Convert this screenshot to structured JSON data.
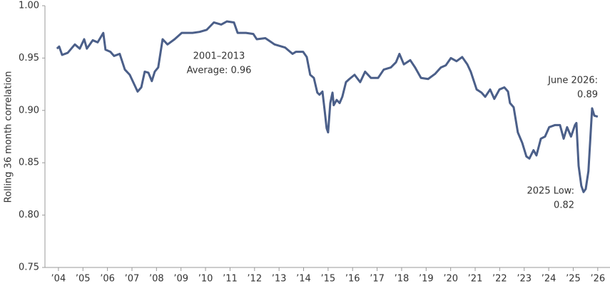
{
  "chart_data": {
    "type": "line",
    "y_label": "Rolling 36 month correlation",
    "x": [
      2003.94,
      2004.03,
      2004.15,
      2004.38,
      2004.67,
      2004.87,
      2005.05,
      2005.16,
      2005.4,
      2005.6,
      2005.83,
      2005.92,
      2006.12,
      2006.27,
      2006.5,
      2006.71,
      2006.91,
      2007.09,
      2007.23,
      2007.38,
      2007.52,
      2007.67,
      2007.81,
      2007.93,
      2008.07,
      2008.25,
      2008.45,
      2008.74,
      2009.03,
      2009.47,
      2009.76,
      2010.05,
      2010.34,
      2010.64,
      2010.87,
      2011.16,
      2011.31,
      2011.65,
      2011.95,
      2012.09,
      2012.44,
      2012.82,
      2013.25,
      2013.55,
      2013.69,
      2013.98,
      2014.13,
      2014.27,
      2014.42,
      2014.56,
      2014.65,
      2014.77,
      2014.86,
      2014.94,
      2015.0,
      2015.09,
      2015.18,
      2015.23,
      2015.35,
      2015.47,
      2015.58,
      2015.73,
      2015.87,
      2016.08,
      2016.31,
      2016.51,
      2016.75,
      2017.04,
      2017.27,
      2017.56,
      2017.77,
      2017.91,
      2018.09,
      2018.35,
      2018.55,
      2018.79,
      2019.08,
      2019.37,
      2019.6,
      2019.8,
      2020.01,
      2020.24,
      2020.47,
      2020.68,
      2020.82,
      2021.06,
      2021.26,
      2021.41,
      2021.61,
      2021.78,
      2021.99,
      2022.19,
      2022.34,
      2022.42,
      2022.57,
      2022.74,
      2022.92,
      2023.09,
      2023.21,
      2023.38,
      2023.5,
      2023.68,
      2023.85,
      2024.02,
      2024.26,
      2024.46,
      2024.61,
      2024.75,
      2024.91,
      2025.07,
      2025.13,
      2025.22,
      2025.33,
      2025.42,
      2025.51,
      2025.62,
      2025.77,
      2025.86,
      2026.0
    ],
    "series": [
      {
        "name": "Rolling 36 month correlation",
        "color": "#4b5f89",
        "values": [
          0.959,
          0.961,
          0.953,
          0.955,
          0.963,
          0.959,
          0.968,
          0.959,
          0.967,
          0.965,
          0.974,
          0.958,
          0.956,
          0.952,
          0.954,
          0.939,
          0.934,
          0.925,
          0.918,
          0.922,
          0.937,
          0.936,
          0.928,
          0.937,
          0.941,
          0.968,
          0.963,
          0.968,
          0.974,
          0.974,
          0.975,
          0.977,
          0.984,
          0.982,
          0.985,
          0.984,
          0.974,
          0.974,
          0.973,
          0.968,
          0.969,
          0.963,
          0.96,
          0.954,
          0.956,
          0.956,
          0.951,
          0.934,
          0.931,
          0.917,
          0.915,
          0.918,
          0.9,
          0.883,
          0.879,
          0.907,
          0.917,
          0.905,
          0.91,
          0.907,
          0.913,
          0.927,
          0.93,
          0.934,
          0.927,
          0.937,
          0.931,
          0.931,
          0.939,
          0.941,
          0.946,
          0.954,
          0.944,
          0.948,
          0.941,
          0.931,
          0.93,
          0.935,
          0.941,
          0.943,
          0.95,
          0.947,
          0.951,
          0.944,
          0.937,
          0.92,
          0.917,
          0.913,
          0.92,
          0.911,
          0.92,
          0.922,
          0.918,
          0.907,
          0.903,
          0.879,
          0.869,
          0.856,
          0.854,
          0.862,
          0.857,
          0.873,
          0.875,
          0.884,
          0.886,
          0.886,
          0.873,
          0.884,
          0.875,
          0.886,
          0.888,
          0.847,
          0.828,
          0.822,
          0.825,
          0.842,
          0.902,
          0.895,
          0.894
        ]
      }
    ],
    "xlim": [
      2003.45,
      2026.5
    ],
    "xticks": [
      {
        "value": 2004,
        "label": "’04"
      },
      {
        "value": 2005,
        "label": "’05"
      },
      {
        "value": 2006,
        "label": "’06"
      },
      {
        "value": 2007,
        "label": "’07"
      },
      {
        "value": 2008,
        "label": "’08"
      },
      {
        "value": 2009,
        "label": "’09"
      },
      {
        "value": 2010,
        "label": "’10"
      },
      {
        "value": 2011,
        "label": "’11"
      },
      {
        "value": 2012,
        "label": "’12"
      },
      {
        "value": 2013,
        "label": "’13"
      },
      {
        "value": 2014,
        "label": "’14"
      },
      {
        "value": 2015,
        "label": "’15"
      },
      {
        "value": 2016,
        "label": "’16"
      },
      {
        "value": 2017,
        "label": "’17"
      },
      {
        "value": 2018,
        "label": "’18"
      },
      {
        "value": 2019,
        "label": "’19"
      },
      {
        "value": 2020,
        "label": "’20"
      },
      {
        "value": 2021,
        "label": "’21"
      },
      {
        "value": 2022,
        "label": "’22"
      },
      {
        "value": 2023,
        "label": "’23"
      },
      {
        "value": 2024,
        "label": "’24"
      },
      {
        "value": 2025,
        "label": "’25"
      },
      {
        "value": 2026,
        "label": "’26"
      }
    ],
    "ylim": [
      0.75,
      1.0
    ],
    "yticks": [
      0.75,
      {
        "value": 0.8,
        "label": "0.80"
      },
      0.85,
      {
        "value": 0.9,
        "label": "0.90"
      },
      0.95,
      {
        "value": 1,
        "label": "1.00"
      }
    ],
    "annotations": [
      {
        "lines": [
          "2001–2013",
          "Average: 0.96"
        ]
      },
      {
        "lines": [
          "June 2026:",
          "0.89"
        ]
      },
      {
        "lines": [
          "2025 Low:",
          "0.82"
        ]
      }
    ]
  }
}
